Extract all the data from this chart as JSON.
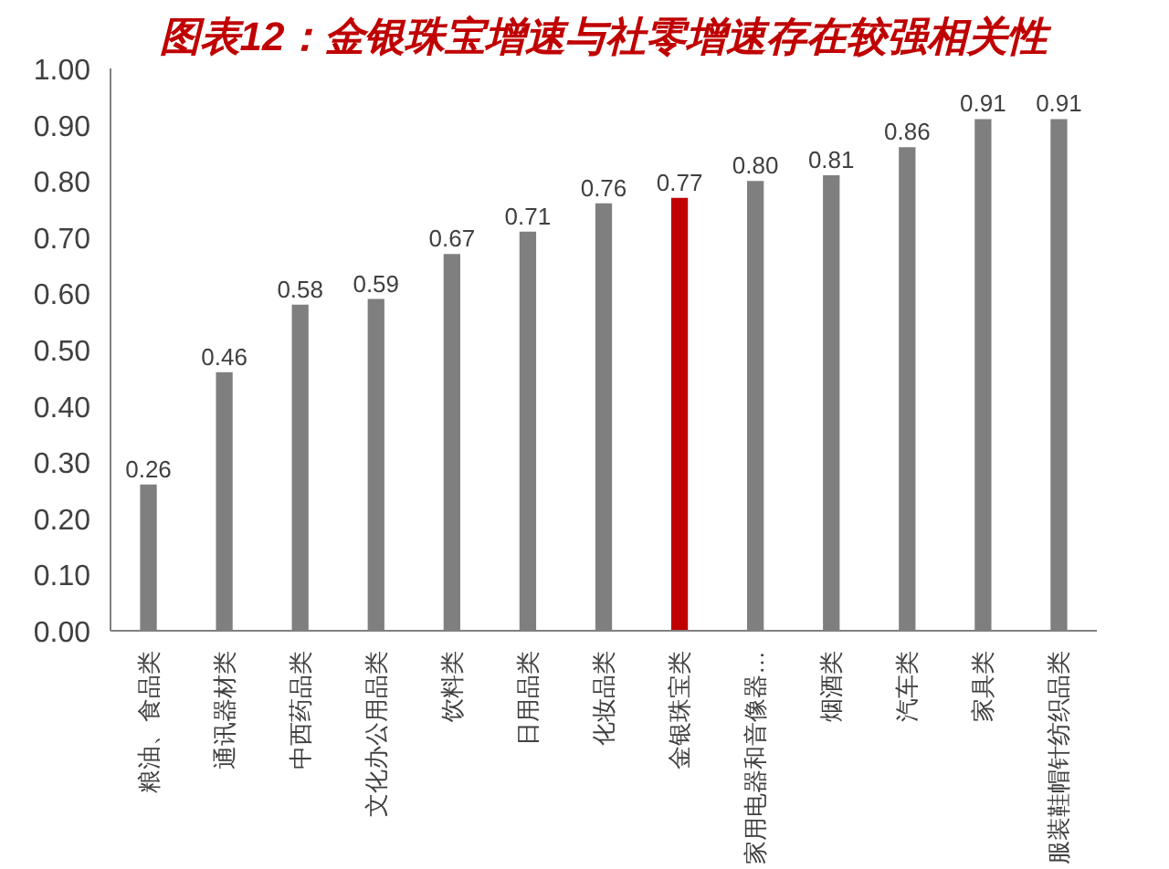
{
  "chart_data": {
    "type": "bar",
    "title": "图表12：金银珠宝增速与社零增速存在较强相关性",
    "categories": [
      "粮油、食品类",
      "通讯器材类",
      "中西药品类",
      "文化办公用品类",
      "饮料类",
      "日用品类",
      "化妆品类",
      "金银珠宝类",
      "家用电器和音像器…",
      "烟酒类",
      "汽车类",
      "家具类",
      "服装鞋帽针纺织品类"
    ],
    "values": [
      0.26,
      0.46,
      0.58,
      0.59,
      0.67,
      0.71,
      0.76,
      0.77,
      0.8,
      0.81,
      0.86,
      0.91,
      0.91
    ],
    "colors": [
      "#7f7f7f",
      "#7f7f7f",
      "#7f7f7f",
      "#7f7f7f",
      "#7f7f7f",
      "#7f7f7f",
      "#7f7f7f",
      "#c00000",
      "#7f7f7f",
      "#7f7f7f",
      "#7f7f7f",
      "#7f7f7f",
      "#7f7f7f"
    ],
    "ylim": [
      0,
      1.0
    ],
    "yticks": [
      {
        "value": 0,
        "label": "0.00"
      },
      {
        "value": 0.1,
        "label": "0.10"
      },
      {
        "value": 0.2,
        "label": "0.20"
      },
      {
        "value": 0.3,
        "label": "0.30"
      },
      {
        "value": 0.4,
        "label": "0.40"
      },
      {
        "value": 0.5,
        "label": "0.50"
      },
      {
        "value": 0.6,
        "label": "0.60"
      },
      {
        "value": 0.7,
        "label": "0.70"
      },
      {
        "value": 0.8,
        "label": "0.80"
      },
      {
        "value": 0.9,
        "label": "0.90"
      },
      {
        "value": 1.0,
        "label": "1.00"
      }
    ],
    "value_labels": [
      "0.26",
      "0.46",
      "0.58",
      "0.59",
      "0.67",
      "0.71",
      "0.76",
      "0.77",
      "0.80",
      "0.81",
      "0.86",
      "0.91",
      "0.91"
    ],
    "grid": false
  }
}
